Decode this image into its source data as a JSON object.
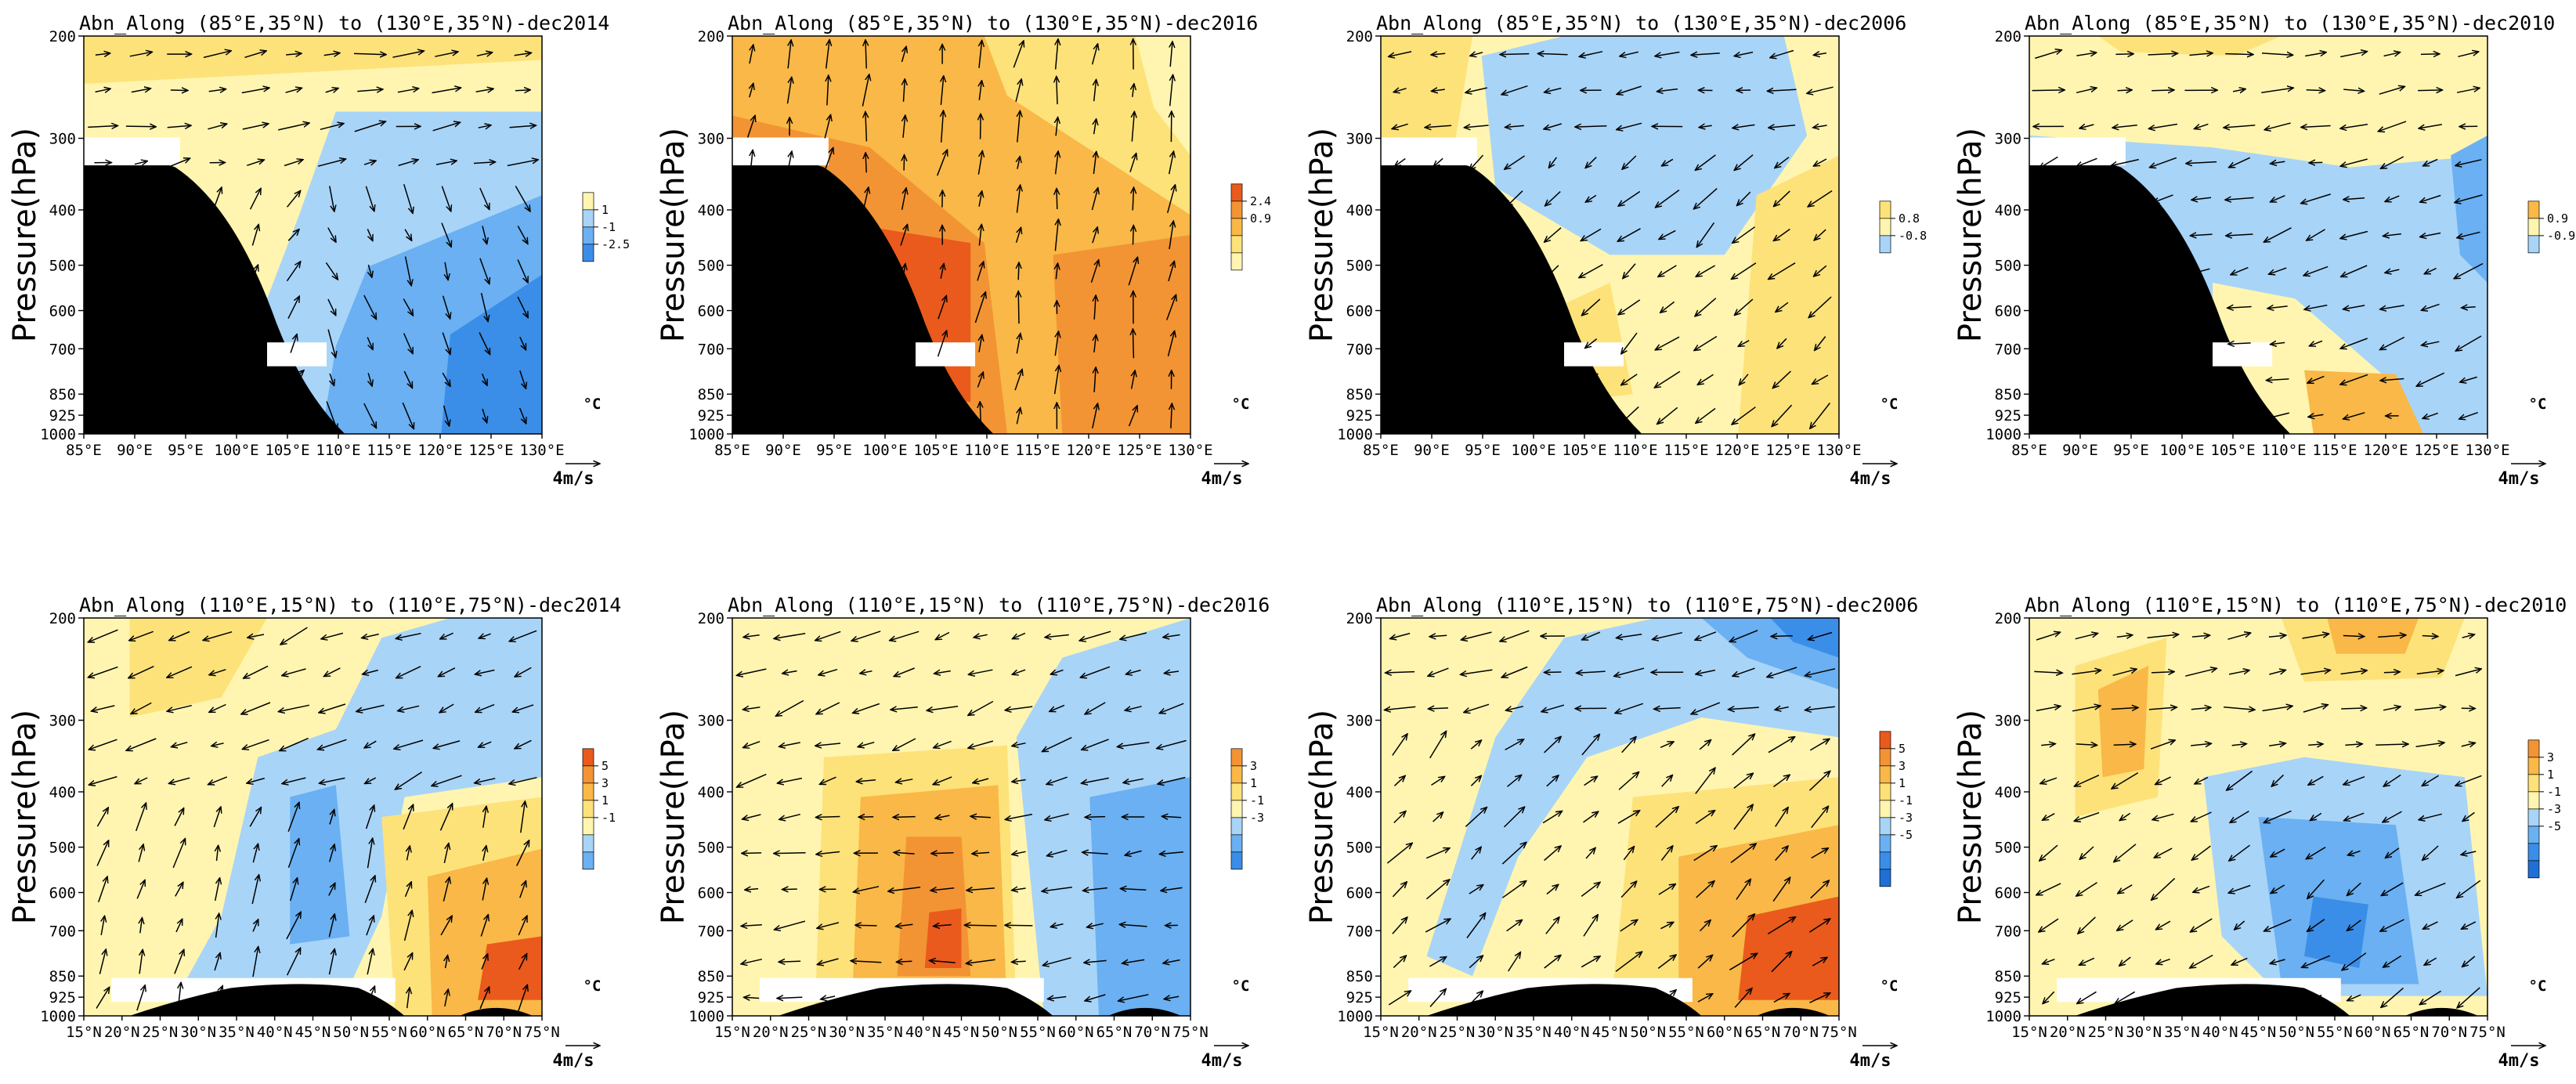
{
  "figure": {
    "y_axis_label": "Pressure(hPa)",
    "pressure_ticks": [
      "200",
      "300",
      "400",
      "500",
      "600",
      "700",
      "850",
      "925",
      "1000"
    ],
    "top_row_x_ticks": [
      "85°E",
      "90°E",
      "95°E",
      "100°E",
      "105°E",
      "110°E",
      "115°E",
      "120°E",
      "125°E",
      "130°E"
    ],
    "bottom_row_x_ticks": [
      "15°N",
      "20°N",
      "25°N",
      "30°N",
      "35°N",
      "40°N",
      "45°N",
      "50°N",
      "55°N",
      "60°N",
      "65°N",
      "70°N",
      "75°N"
    ],
    "colorbar_unit": "°C",
    "vector_reference": "4m/s",
    "palette": {
      "terrain": "#000000",
      "neg_strong": "#3a8ee8",
      "neg_mid": "#6ab0f2",
      "neg_weak": "#a8d4f8",
      "pos_weak": "#fff5b0",
      "pos_light": "#fde27a",
      "pos_mid": "#f9b847",
      "pos_strong": "#f29434",
      "pos_max": "#ea5a1c"
    }
  },
  "chart_data": [
    {
      "type": "contour",
      "title": "Abn_Along (85°E,35°N) to (130°E,35°N)-dec2014",
      "row": "top",
      "column": 1,
      "x_range": [
        "85°E",
        "130°E"
      ],
      "ylim": [
        1000,
        200
      ],
      "colorbar_labels": [
        "1",
        "-1",
        "-2.5"
      ],
      "colorbar_colors": [
        "#fff5b0",
        "#a8d4f8",
        "#6ab0f2",
        "#3a8ee8"
      ],
      "dominant_anomaly": "cold east of 105°E, warm west and aloft"
    },
    {
      "type": "contour",
      "title": "Abn_Along (85°E,35°N) to (130°E,35°N)-dec2016",
      "row": "top",
      "column": 2,
      "x_range": [
        "85°E",
        "130°E"
      ],
      "ylim": [
        1000,
        200
      ],
      "colorbar_labels": [
        "2.4",
        "0.9"
      ],
      "colorbar_colors": [
        "#ea5a1c",
        "#f29434",
        "#f9b847",
        "#fde27a",
        "#fff5b0"
      ],
      "dominant_anomaly": "warm throughout, strongest near 105°E low levels"
    },
    {
      "type": "contour",
      "title": "Abn_Along (85°E,35°N) to (130°E,35°N)-dec2006",
      "row": "top",
      "column": 3,
      "x_range": [
        "85°E",
        "130°E"
      ],
      "ylim": [
        1000,
        200
      ],
      "colorbar_labels": [
        "0.8",
        "-0.8"
      ],
      "colorbar_colors": [
        "#fde27a",
        "#fff5b0",
        "#a8d4f8"
      ],
      "dominant_anomaly": "cold upper troposphere 100°E–120°E, weak warm below"
    },
    {
      "type": "contour",
      "title": "Abn_Along (85°E,35°N) to (130°E,35°N)-dec2010",
      "row": "top",
      "column": 4,
      "x_range": [
        "85°E",
        "130°E"
      ],
      "ylim": [
        1000,
        200
      ],
      "colorbar_labels": [
        "0.9",
        "-0.9"
      ],
      "colorbar_colors": [
        "#f9b847",
        "#fff5b0",
        "#a8d4f8"
      ],
      "dominant_anomaly": "cold mid troposphere, warm aloft and near 115°E surface"
    },
    {
      "type": "contour",
      "title": "Abn_Along (110°E,15°N) to (110°E,75°N)-dec2014",
      "row": "bottom",
      "column": 1,
      "x_range": [
        "15°N",
        "75°N"
      ],
      "ylim": [
        1000,
        200
      ],
      "colorbar_labels": [
        "5",
        "3",
        "1",
        "-1"
      ],
      "colorbar_colors": [
        "#ea5a1c",
        "#f29434",
        "#f9b847",
        "#fde27a",
        "#fff5b0",
        "#a8d4f8",
        "#6ab0f2"
      ],
      "dominant_anomaly": "cold column 35°N–55°N, warm low levels north of 60°N"
    },
    {
      "type": "contour",
      "title": "Abn_Along (110°E,15°N) to (110°E,75°N)-dec2016",
      "row": "bottom",
      "column": 2,
      "x_range": [
        "15°N",
        "75°N"
      ],
      "ylim": [
        1000,
        200
      ],
      "colorbar_labels": [
        "3",
        "1",
        "-1",
        "-3"
      ],
      "colorbar_colors": [
        "#f29434",
        "#f9b847",
        "#fde27a",
        "#fff5b0",
        "#a8d4f8",
        "#6ab0f2",
        "#3a8ee8"
      ],
      "dominant_anomaly": "warm 30°N–55°N lower troposphere, cold north of 60°N"
    },
    {
      "type": "contour",
      "title": "Abn_Along (110°E,15°N) to (110°E,75°N)-dec2006",
      "row": "bottom",
      "column": 3,
      "x_range": [
        "15°N",
        "75°N"
      ],
      "ylim": [
        1000,
        200
      ],
      "colorbar_labels": [
        "5",
        "3",
        "1",
        "-1",
        "-3",
        "-5"
      ],
      "colorbar_colors": [
        "#ea5a1c",
        "#f29434",
        "#f9b847",
        "#fde27a",
        "#fff5b0",
        "#a8d4f8",
        "#6ab0f2",
        "#3a8ee8",
        "#1f6fd6"
      ],
      "dominant_anomaly": "cold band tilting from 25°N low levels to 70°N aloft, warm north lower levels"
    },
    {
      "type": "contour",
      "title": "Abn_Along (110°E,15°N) to (110°E,75°N)-dec2010",
      "row": "bottom",
      "column": 4,
      "x_range": [
        "15°N",
        "75°N"
      ],
      "ylim": [
        1000,
        200
      ],
      "colorbar_labels": [
        "3",
        "1",
        "-1",
        "-3",
        "-5"
      ],
      "colorbar_colors": [
        "#f29434",
        "#f9b847",
        "#fde27a",
        "#fff5b0",
        "#a8d4f8",
        "#6ab0f2",
        "#3a8ee8",
        "#1f6fd6"
      ],
      "dominant_anomaly": "cold 40°N–60°N mid-lower levels, warm aloft near 60°N"
    }
  ]
}
